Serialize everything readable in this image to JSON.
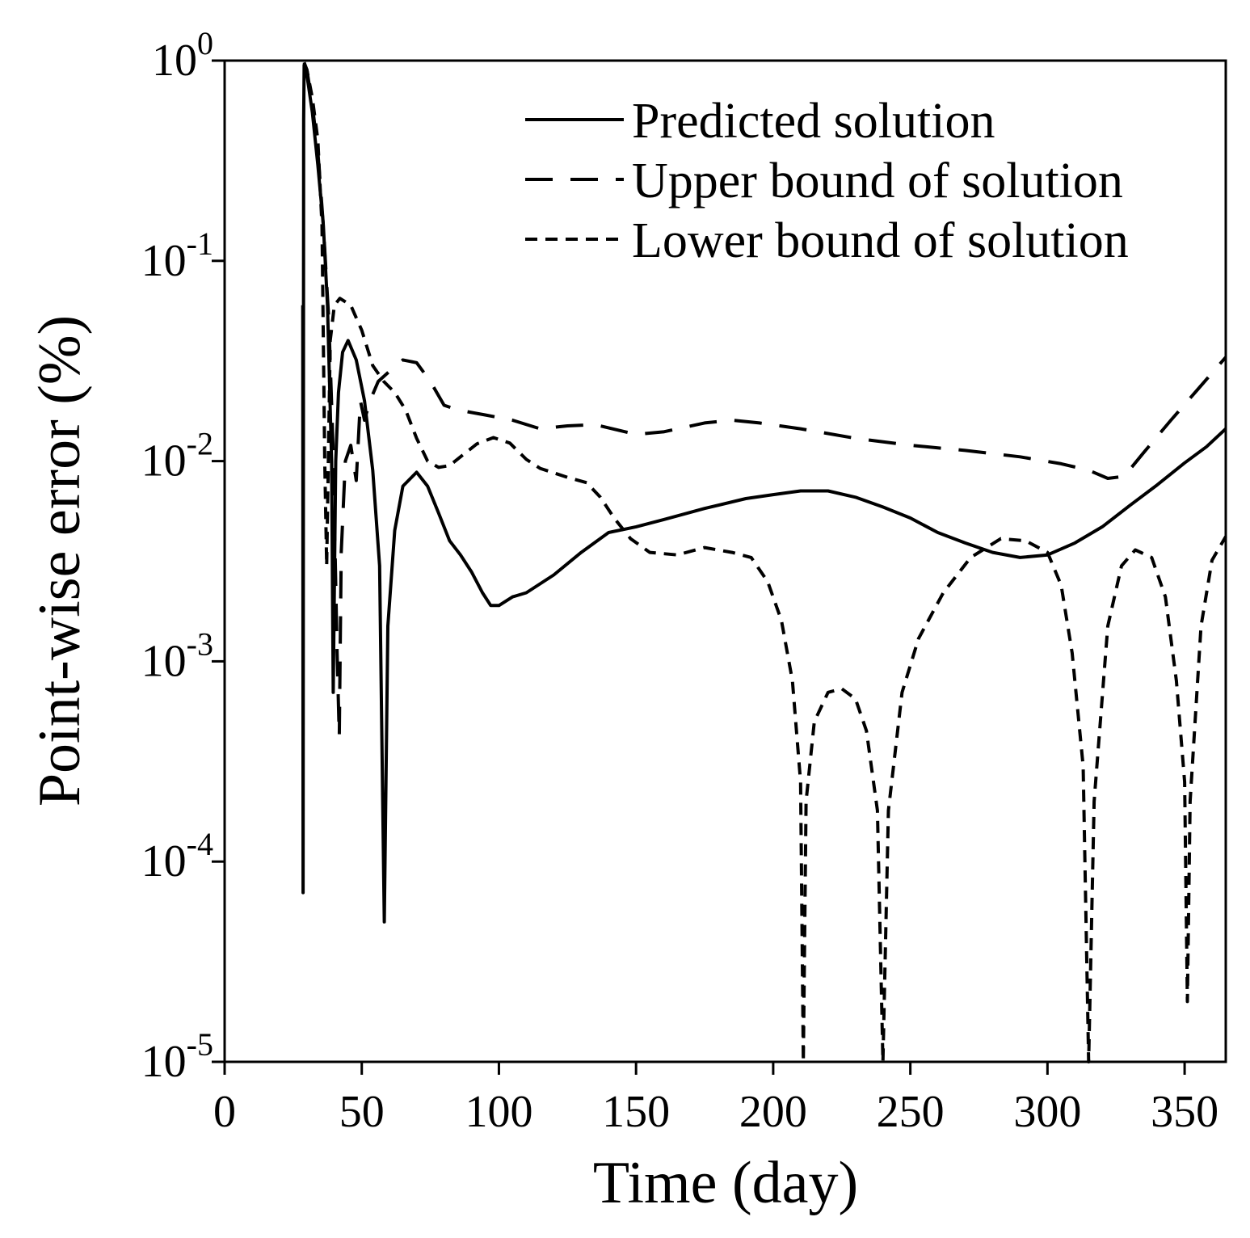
{
  "chart_data": {
    "type": "line",
    "title": "",
    "xlabel": "Time (day)",
    "ylabel": "Point-wise error (%)",
    "xlim": [
      0,
      365
    ],
    "ylim": [
      1e-05,
      1
    ],
    "yscale": "log",
    "grid": false,
    "legend_position": "top-right",
    "x_ticks": [
      {
        "value": 0,
        "label": "0"
      },
      {
        "value": 50,
        "label": "50"
      },
      {
        "value": 100,
        "label": "100"
      },
      {
        "value": 150,
        "label": "150"
      },
      {
        "value": 200,
        "label": "200"
      },
      {
        "value": 250,
        "label": "250"
      },
      {
        "value": 300,
        "label": "300"
      },
      {
        "value": 350,
        "label": "350"
      }
    ],
    "y_ticks": [
      {
        "value": 1e-05,
        "base": "10",
        "exp": "-5"
      },
      {
        "value": 0.0001,
        "base": "10",
        "exp": "-4"
      },
      {
        "value": 0.001,
        "base": "10",
        "exp": "-3"
      },
      {
        "value": 0.01,
        "base": "10",
        "exp": "-2"
      },
      {
        "value": 0.1,
        "base": "10",
        "exp": "-1"
      },
      {
        "value": 1,
        "base": "10",
        "exp": "0"
      }
    ],
    "series": [
      {
        "name": "Predicted solution",
        "style": "solid",
        "points": [
          [
            28.5,
            0.06
          ],
          [
            28.6,
            7e-05
          ],
          [
            28.8,
            0.5
          ],
          [
            29,
            0.95
          ],
          [
            30,
            0.85
          ],
          [
            32,
            0.55
          ],
          [
            34,
            0.3
          ],
          [
            36,
            0.15
          ],
          [
            37.5,
            0.06
          ],
          [
            39,
            0.01
          ],
          [
            39.6,
            0.0007
          ],
          [
            40.5,
            0.01
          ],
          [
            41.5,
            0.022
          ],
          [
            43,
            0.035
          ],
          [
            45,
            0.04
          ],
          [
            48,
            0.032
          ],
          [
            51,
            0.02
          ],
          [
            54,
            0.009
          ],
          [
            56.5,
            0.003
          ],
          [
            58.2,
            5e-05
          ],
          [
            59.5,
            0.0015
          ],
          [
            62,
            0.0045
          ],
          [
            65,
            0.0075
          ],
          [
            70,
            0.0088
          ],
          [
            74,
            0.0075
          ],
          [
            78,
            0.0055
          ],
          [
            82,
            0.004
          ],
          [
            86,
            0.0034
          ],
          [
            90,
            0.0028
          ],
          [
            94,
            0.0022
          ],
          [
            97,
            0.0019
          ],
          [
            100,
            0.0019
          ],
          [
            105,
            0.0021
          ],
          [
            110,
            0.0022
          ],
          [
            120,
            0.0027
          ],
          [
            130,
            0.0035
          ],
          [
            140,
            0.0044
          ],
          [
            150,
            0.0047
          ],
          [
            160,
            0.0051
          ],
          [
            175,
            0.0058
          ],
          [
            190,
            0.0065
          ],
          [
            200,
            0.0068
          ],
          [
            210,
            0.0071
          ],
          [
            220,
            0.0071
          ],
          [
            230,
            0.0066
          ],
          [
            240,
            0.0059
          ],
          [
            250,
            0.0052
          ],
          [
            260,
            0.0044
          ],
          [
            270,
            0.0039
          ],
          [
            280,
            0.0035
          ],
          [
            290,
            0.0033
          ],
          [
            300,
            0.0034
          ],
          [
            310,
            0.0039
          ],
          [
            320,
            0.0047
          ],
          [
            330,
            0.006
          ],
          [
            340,
            0.0076
          ],
          [
            350,
            0.0098
          ],
          [
            358,
            0.0118
          ],
          [
            365,
            0.0145
          ]
        ]
      },
      {
        "name": "Upper bound of solution",
        "style": "dashed",
        "points": [
          [
            29,
            0.98
          ],
          [
            30,
            0.9
          ],
          [
            32,
            0.6
          ],
          [
            34,
            0.35
          ],
          [
            36,
            0.15
          ],
          [
            38,
            0.05
          ],
          [
            39.5,
            0.012
          ],
          [
            41,
            0.0011
          ],
          [
            41.8,
            0.00042
          ],
          [
            42.5,
            0.0035
          ],
          [
            44,
            0.01
          ],
          [
            46,
            0.012
          ],
          [
            48,
            0.008
          ],
          [
            49.5,
            0.02
          ],
          [
            51,
            0.016
          ],
          [
            53,
            0.02
          ],
          [
            56,
            0.025
          ],
          [
            60,
            0.028
          ],
          [
            65,
            0.032
          ],
          [
            70,
            0.031
          ],
          [
            75,
            0.025
          ],
          [
            80,
            0.019
          ],
          [
            85,
            0.018
          ],
          [
            95,
            0.017
          ],
          [
            105,
            0.016
          ],
          [
            115,
            0.0145
          ],
          [
            125,
            0.015
          ],
          [
            135,
            0.0152
          ],
          [
            150,
            0.0136
          ],
          [
            160,
            0.014
          ],
          [
            175,
            0.0155
          ],
          [
            185,
            0.016
          ],
          [
            195,
            0.0155
          ],
          [
            210,
            0.0145
          ],
          [
            230,
            0.013
          ],
          [
            250,
            0.012
          ],
          [
            270,
            0.0113
          ],
          [
            290,
            0.0105
          ],
          [
            305,
            0.0097
          ],
          [
            315,
            0.009
          ],
          [
            322,
            0.0082
          ],
          [
            328,
            0.0084
          ],
          [
            335,
            0.011
          ],
          [
            345,
            0.016
          ],
          [
            355,
            0.023
          ],
          [
            365,
            0.033
          ]
        ]
      },
      {
        "name": "Lower bound of solution",
        "style": "dotted",
        "points": [
          [
            29,
            0.96
          ],
          [
            30,
            0.9
          ],
          [
            32,
            0.65
          ],
          [
            34,
            0.4
          ],
          [
            35.5,
            0.15
          ],
          [
            36.5,
            0.01
          ],
          [
            37.2,
            0.003
          ],
          [
            38.5,
            0.04
          ],
          [
            40,
            0.06
          ],
          [
            42,
            0.065
          ],
          [
            46,
            0.06
          ],
          [
            50,
            0.045
          ],
          [
            54,
            0.03
          ],
          [
            58,
            0.025
          ],
          [
            62,
            0.022
          ],
          [
            66,
            0.018
          ],
          [
            70,
            0.013
          ],
          [
            74,
            0.01
          ],
          [
            78,
            0.0093
          ],
          [
            82,
            0.0095
          ],
          [
            86,
            0.0105
          ],
          [
            92,
            0.0122
          ],
          [
            98,
            0.0131
          ],
          [
            104,
            0.0123
          ],
          [
            110,
            0.0102
          ],
          [
            115,
            0.0092
          ],
          [
            125,
            0.0083
          ],
          [
            132,
            0.0078
          ],
          [
            137,
            0.0066
          ],
          [
            142,
            0.0052
          ],
          [
            148,
            0.0041
          ],
          [
            155,
            0.0035
          ],
          [
            165,
            0.0034
          ],
          [
            175,
            0.0037
          ],
          [
            185,
            0.0035
          ],
          [
            192,
            0.0033
          ],
          [
            198,
            0.0025
          ],
          [
            203,
            0.0016
          ],
          [
            207,
            0.0008
          ],
          [
            210,
            0.00025
          ],
          [
            211,
            1e-05
          ],
          [
            212,
            0.0002
          ],
          [
            215,
            0.0005
          ],
          [
            220,
            0.0007
          ],
          [
            225,
            0.00073
          ],
          [
            230,
            0.00065
          ],
          [
            234,
            0.00045
          ],
          [
            238,
            0.00018
          ],
          [
            240,
            1e-05
          ],
          [
            242,
            0.00018
          ],
          [
            247,
            0.0007
          ],
          [
            253,
            0.0013
          ],
          [
            262,
            0.0022
          ],
          [
            272,
            0.0033
          ],
          [
            283,
            0.0041
          ],
          [
            292,
            0.004
          ],
          [
            300,
            0.0035
          ],
          [
            305,
            0.0024
          ],
          [
            309,
            0.0011
          ],
          [
            313,
            0.0003
          ],
          [
            315,
            1e-05
          ],
          [
            317,
            0.0002
          ],
          [
            322,
            0.0015
          ],
          [
            327,
            0.003
          ],
          [
            332,
            0.0036
          ],
          [
            338,
            0.0033
          ],
          [
            343,
            0.0021
          ],
          [
            347,
            0.0008
          ],
          [
            350,
            0.00025
          ],
          [
            351,
            2e-05
          ],
          [
            352,
            0.0002
          ],
          [
            356,
            0.0015
          ],
          [
            360,
            0.0032
          ],
          [
            365,
            0.0042
          ]
        ]
      }
    ]
  }
}
